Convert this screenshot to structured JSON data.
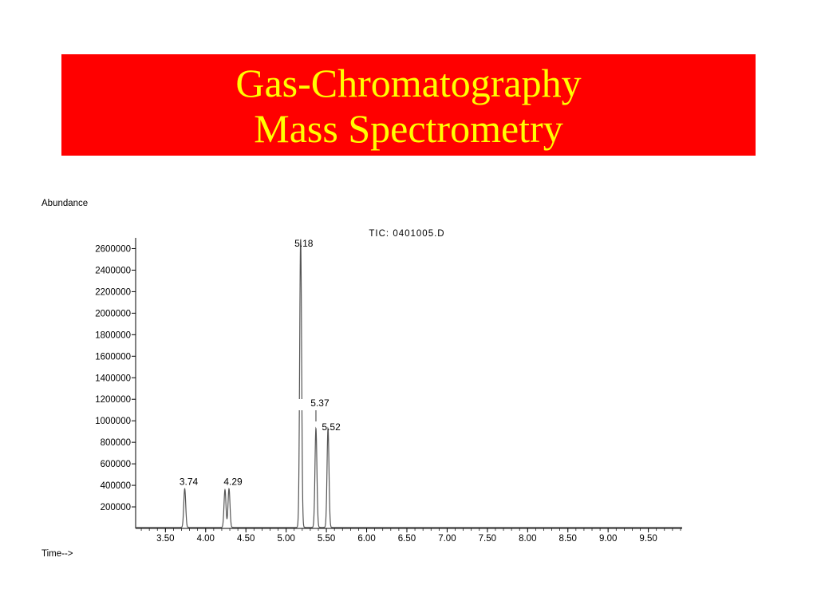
{
  "slide": {
    "title_line1": "Gas-Chromatography",
    "title_line2": "Mass Spectrometry",
    "banner_color": "#ff0000",
    "title_color": "#ffff00"
  },
  "chart_data": {
    "type": "line",
    "title": "TIC: 0401005.D",
    "ylabel": "Abundance",
    "xlabel": "Time-->",
    "xlim": [
      3.13,
      9.92
    ],
    "ylim": [
      0,
      2700000
    ],
    "x_ticks": [
      3.5,
      4.0,
      4.5,
      5.0,
      5.5,
      6.0,
      6.5,
      7.0,
      7.5,
      8.0,
      8.5,
      9.0,
      9.5
    ],
    "x_tick_labels": [
      "3.50",
      "4.00",
      "4.50",
      "5.00",
      "5.50",
      "6.00",
      "6.50",
      "7.00",
      "7.50",
      "8.00",
      "8.50",
      "9.00",
      "9.50"
    ],
    "y_ticks": [
      200000,
      400000,
      600000,
      800000,
      1000000,
      1200000,
      1400000,
      1600000,
      1800000,
      2000000,
      2200000,
      2400000,
      2600000
    ],
    "y_tick_labels": [
      "200000",
      "400000",
      "600000",
      "800000",
      "1000000",
      "1200000",
      "1400000",
      "1600000",
      "1800000",
      "2000000",
      "2200000",
      "2400000",
      "2600000"
    ],
    "peaks": [
      {
        "rt": 3.74,
        "abundance": 360000,
        "label": "3.74"
      },
      {
        "rt": 4.24,
        "abundance": 350000,
        "label": ""
      },
      {
        "rt": 4.29,
        "abundance": 360000,
        "label": "4.29"
      },
      {
        "rt": 5.18,
        "abundance": 2680000,
        "label": "5.18"
      },
      {
        "rt": 5.37,
        "abundance": 920000,
        "label": "5.37"
      },
      {
        "rt": 5.52,
        "abundance": 920000,
        "label": "5.52"
      }
    ],
    "line_color": "#555555",
    "grid": false
  }
}
